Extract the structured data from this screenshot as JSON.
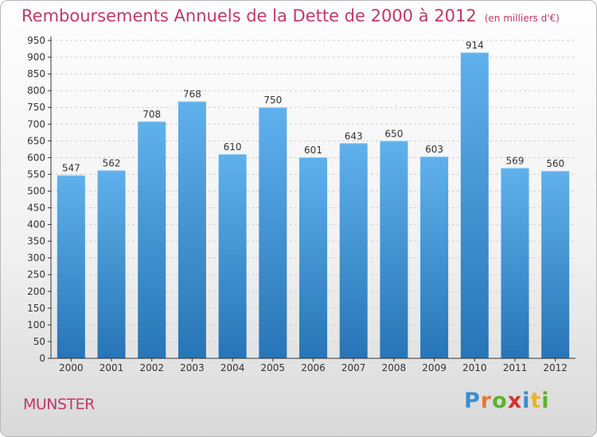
{
  "title": "Remboursements Annuels de la Dette de 2000 à 2012",
  "unit_note": "(en milliers d'€)",
  "city": "MUNSTER",
  "logo_text": "Proxiti",
  "colors": {
    "title": "#c0386a",
    "bar_top": "#5fb1ec",
    "bar_bottom": "#2775b6",
    "axis": "#333333",
    "grid": "#cfcfcf"
  },
  "chart_data": {
    "type": "bar",
    "title": "Remboursements Annuels de la Dette de 2000 à 2012",
    "xlabel": "",
    "ylabel": "",
    "categories": [
      "2000",
      "2001",
      "2002",
      "2003",
      "2004",
      "2005",
      "2006",
      "2007",
      "2008",
      "2009",
      "2010",
      "2011",
      "2012"
    ],
    "values": [
      547,
      562,
      708,
      768,
      610,
      750,
      601,
      643,
      650,
      603,
      914,
      569,
      560
    ],
    "ylim": [
      0,
      950
    ],
    "ytick_step": 50,
    "grid": "horizontal dashed",
    "data_labels": true
  }
}
